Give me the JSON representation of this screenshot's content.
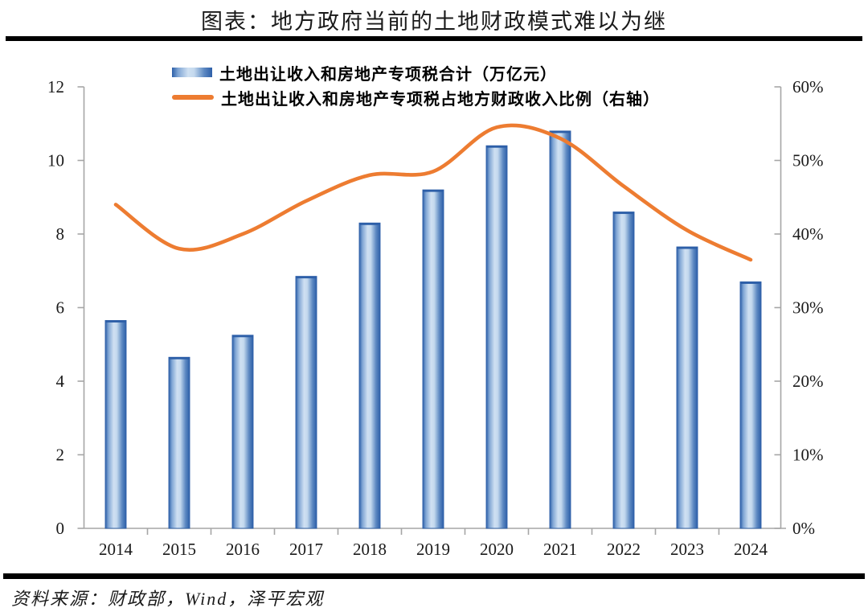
{
  "header": {
    "title": "图表：地方政府当前的土地财政模式难以为继"
  },
  "legend": {
    "items": [
      {
        "label": "土地出让收入和房地产专项税合计（万亿元）",
        "swatch": "bar-swatch"
      },
      {
        "label": "土地出让收入和房地产专项税占地方财政收入比例（右轴）",
        "swatch": "line-swatch"
      }
    ]
  },
  "footer": {
    "source": "资料来源：财政部，Wind，泽平宏观"
  },
  "colors": {
    "bar_edge": "#2d5fa8",
    "bar_mid": "#7fa5d4",
    "bar_light": "#cfe0f2",
    "line": "#ED7C31",
    "axis": "#a6a6a6",
    "text": "#1a1a1a",
    "rule": "#000000"
  },
  "chart_data": {
    "type": "bar+line combo",
    "categories": [
      "2014",
      "2015",
      "2016",
      "2017",
      "2018",
      "2019",
      "2020",
      "2021",
      "2022",
      "2023",
      "2024"
    ],
    "series": [
      {
        "name": "土地出让收入和房地产专项税合计（万亿元）",
        "type": "bar",
        "axis": "left",
        "values": [
          5.65,
          4.65,
          5.25,
          6.85,
          8.3,
          9.2,
          10.4,
          10.8,
          8.6,
          7.65,
          6.7
        ]
      },
      {
        "name": "土地出让收入和房地产专项税占地方财政收入比例（右轴）",
        "type": "line",
        "axis": "right",
        "unit": "%",
        "values": [
          44,
          38,
          40,
          44.5,
          48,
          48.5,
          54.5,
          53,
          46.5,
          40.5,
          36.5
        ]
      }
    ],
    "left_axis": {
      "min": 0,
      "max": 12,
      "tick_labels": [
        "0",
        "2",
        "4",
        "6",
        "8",
        "10",
        "12"
      ]
    },
    "right_axis": {
      "min": 0,
      "max": 60,
      "tick_labels": [
        "0%",
        "10%",
        "20%",
        "30%",
        "40%",
        "50%",
        "60%"
      ]
    },
    "grid": false,
    "legend_position": "top-center",
    "title": "图表：地方政府当前的土地财政模式难以为继",
    "source": "资料来源：财政部，Wind，泽平宏观"
  }
}
